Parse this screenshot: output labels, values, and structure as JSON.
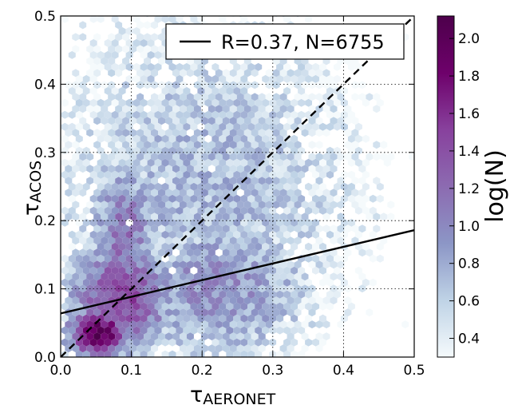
{
  "chart_data": {
    "type": "heatmap",
    "subtype": "hexbin",
    "xlabel_symbol": "τ",
    "xlabel_sub": "AERONET",
    "ylabel_symbol": "τ",
    "ylabel_sub": "ACOS",
    "xlim": [
      0.0,
      0.5
    ],
    "ylim": [
      0.0,
      0.5
    ],
    "xticks": [
      "0.0",
      "0.1",
      "0.2",
      "0.3",
      "0.4",
      "0.5"
    ],
    "yticks": [
      "0.0",
      "0.1",
      "0.2",
      "0.3",
      "0.4",
      "0.5"
    ],
    "grid": true,
    "grid_style": "dotted",
    "legend_label": "R=0.37, N=6755",
    "legend_position": "top-right",
    "fit_line": {
      "x": [
        0.0,
        0.5
      ],
      "y": [
        0.064,
        0.186
      ],
      "style": "solid"
    },
    "identity_line": {
      "x": [
        0.0,
        0.5
      ],
      "y": [
        0.0,
        0.5
      ],
      "style": "dashed"
    },
    "stats": {
      "R": 0.37,
      "N": 6755
    },
    "colorbar": {
      "label": "log(N)",
      "range": [
        0.3,
        2.12
      ],
      "ticks": [
        "0.4",
        "0.6",
        "0.8",
        "1.0",
        "1.2",
        "1.4",
        "1.6",
        "1.8",
        "2.0"
      ],
      "colors": [
        "#f5fafc",
        "#bfd3e6",
        "#8c96c6",
        "#8c6bb1",
        "#88419d",
        "#6e016b",
        "#4d004b"
      ]
    },
    "density_clusters": [
      {
        "x": 0.055,
        "y": 0.035,
        "sx": 0.035,
        "sy": 0.028,
        "peak": 2.05
      },
      {
        "x": 0.085,
        "y": 0.085,
        "sx": 0.06,
        "sy": 0.07,
        "peak": 1.45
      },
      {
        "x": 0.09,
        "y": 0.17,
        "sx": 0.04,
        "sy": 0.1,
        "peak": 1.15
      },
      {
        "x": 0.22,
        "y": 0.1,
        "sx": 0.12,
        "sy": 0.09,
        "peak": 0.95
      },
      {
        "x": 0.2,
        "y": 0.25,
        "sx": 0.2,
        "sy": 0.22,
        "peak": 0.7
      }
    ]
  }
}
